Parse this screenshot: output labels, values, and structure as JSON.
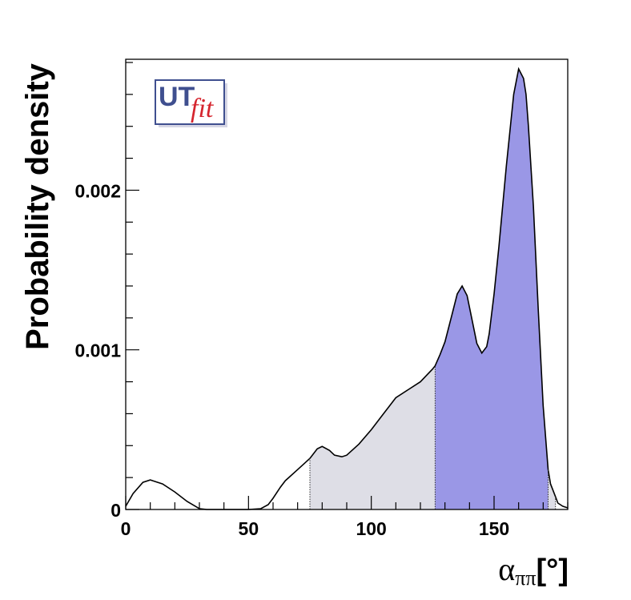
{
  "chart_data": {
    "type": "area",
    "xlabel": {
      "symbol": "α",
      "subscript": "ππ",
      "unit": "[°]"
    },
    "ylabel": "Probability density",
    "xlim": [
      0,
      180
    ],
    "ylim": [
      0,
      0.00282
    ],
    "x_ticks": [
      {
        "value": 0,
        "label": "0"
      },
      {
        "value": 50,
        "label": "50"
      },
      {
        "value": 100,
        "label": "100"
      },
      {
        "value": 150,
        "label": "150"
      }
    ],
    "y_ticks": [
      {
        "value": 0,
        "label": "0"
      },
      {
        "value": 0.001,
        "label": "0.001"
      },
      {
        "value": 0.002,
        "label": "0.002"
      }
    ],
    "x": [
      0,
      3,
      7,
      10,
      12,
      15,
      20,
      25,
      30,
      33,
      35,
      40,
      45,
      50,
      55,
      58,
      60,
      63,
      65,
      70,
      75,
      78,
      80,
      83,
      85,
      88,
      90,
      95,
      100,
      105,
      110,
      115,
      120,
      125,
      126,
      128,
      130,
      133,
      135,
      137,
      139,
      141,
      143,
      145,
      147,
      148,
      150,
      152,
      155,
      158,
      160,
      162,
      163,
      164,
      166,
      168,
      170,
      172,
      173,
      174,
      175,
      176,
      178,
      180
    ],
    "y": [
      2e-05,
      0.0001,
      0.00017,
      0.000185,
      0.000175,
      0.00016,
      0.00011,
      5e-05,
      5e-06,
      0.0,
      0.0,
      0.0,
      0.0,
      0.0,
      5e-06,
      3e-05,
      7e-05,
      0.00014,
      0.00018,
      0.00025,
      0.00032,
      0.00038,
      0.000395,
      0.00037,
      0.00034,
      0.00033,
      0.00034,
      0.00041,
      0.0005,
      0.0006,
      0.0007,
      0.00075,
      0.0008,
      0.00088,
      0.0009,
      0.00097,
      0.00105,
      0.00123,
      0.00135,
      0.0014,
      0.00134,
      0.00119,
      0.00104,
      0.00098,
      0.00102,
      0.0011,
      0.00135,
      0.00165,
      0.00215,
      0.0026,
      0.00276,
      0.0027,
      0.0026,
      0.0024,
      0.0019,
      0.00125,
      0.00065,
      0.00025,
      0.00016,
      0.00012,
      8e-05,
      4e-05,
      2e-05,
      1e-05
    ],
    "intervals": [
      {
        "from": 75,
        "to": 175,
        "color": "#dedee6"
      },
      {
        "from": 126,
        "to": 172,
        "color": "#9a97e6"
      }
    ],
    "legend": "none",
    "grid": false,
    "curve_color": "#000000"
  },
  "logo": {
    "text_ut": "UT",
    "text_fit": "fit",
    "border_color": "#3f4f8f",
    "shadow_color": "#d6d6e4"
  }
}
